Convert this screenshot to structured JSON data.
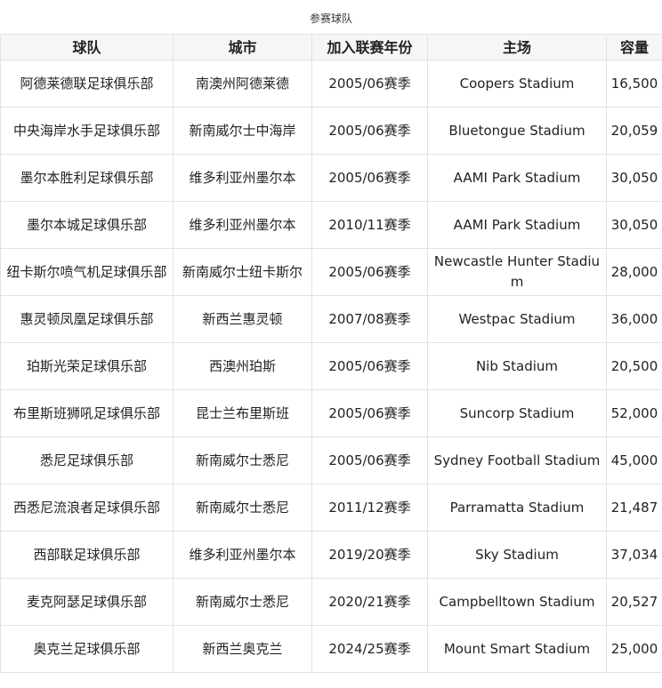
{
  "caption": "参赛球队",
  "headers": [
    "球队",
    "城市",
    "加入联赛年份",
    "主场",
    "容量"
  ],
  "rows": [
    [
      "阿德莱德联足球俱乐部",
      "南澳州阿德莱德",
      "2005/06赛季",
      "Coopers Stadium",
      "16,500"
    ],
    [
      "中央海岸水手足球俱乐部",
      "新南威尔士中海岸",
      "2005/06赛季",
      "Bluetongue Stadium",
      "20,059"
    ],
    [
      "墨尔本胜利足球俱乐部",
      "维多利亚州墨尔本",
      "2005/06赛季",
      "AAMI Park Stadium",
      "30,050"
    ],
    [
      "墨尔本城足球俱乐部",
      "维多利亚州墨尔本",
      "2010/11赛季",
      "AAMI Park Stadium",
      "30,050"
    ],
    [
      "纽卡斯尔喷气机足球俱乐部",
      "新南威尔士纽卡斯尔",
      "2005/06赛季",
      "Newcastle Hunter Stadium",
      "28,000"
    ],
    [
      "惠灵顿凤凰足球俱乐部",
      "新西兰惠灵顿",
      "2007/08赛季",
      "Westpac Stadium",
      "36,000"
    ],
    [
      "珀斯光荣足球俱乐部",
      "西澳州珀斯",
      "2005/06赛季",
      "Nib Stadium",
      "20,500"
    ],
    [
      "布里斯班狮吼足球俱乐部",
      "昆士兰布里斯班",
      "2005/06赛季",
      "Suncorp Stadium",
      "52,000"
    ],
    [
      "悉尼足球俱乐部",
      "新南威尔士悉尼",
      "2005/06赛季",
      "Sydney Football Stadium",
      "45,000"
    ],
    [
      "西悉尼流浪者足球俱乐部",
      "新南威尔士悉尼",
      "2011/12赛季",
      "Parramatta Stadium",
      "21,487"
    ],
    [
      "西部联足球俱乐部",
      "维多利亚州墨尔本",
      "2019/20赛季",
      "Sky Stadium",
      "37,034"
    ],
    [
      "麦克阿瑟足球俱乐部",
      "新南威尔士悉尼",
      "2020/21赛季",
      "Campbelltown Stadium",
      "20,527"
    ],
    [
      "奥克兰足球俱乐部",
      "新西兰奥克兰",
      "2024/25赛季",
      "Mount Smart Stadium",
      "25,000"
    ]
  ]
}
